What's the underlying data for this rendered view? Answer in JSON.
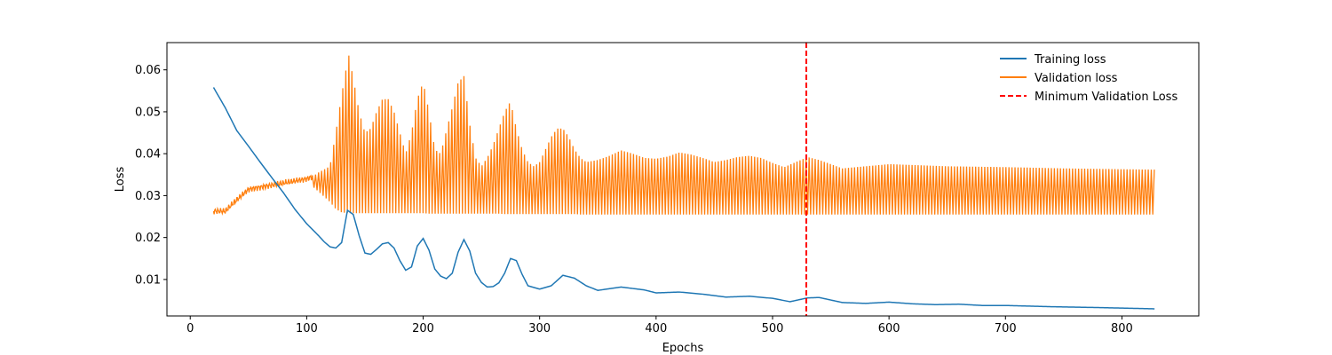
{
  "chart_data": {
    "type": "line",
    "title": "",
    "xlabel": "Epochs",
    "ylabel": "Loss",
    "xlim": [
      -20,
      866
    ],
    "ylim": [
      0.0013,
      0.0665
    ],
    "xticks": [
      0,
      100,
      200,
      300,
      400,
      500,
      600,
      700,
      800
    ],
    "yticks": [
      0.01,
      0.02,
      0.03,
      0.04,
      0.05,
      0.06
    ],
    "xtick_labels": [
      "0",
      "100",
      "200",
      "300",
      "400",
      "500",
      "600",
      "700",
      "800"
    ],
    "ytick_labels": [
      "0.01",
      "0.02",
      "0.03",
      "0.04",
      "0.05",
      "0.06"
    ],
    "grid": false,
    "legend_position": "top-right",
    "series": [
      {
        "name": "Training loss",
        "color": "#1f77b4",
        "style": "solid",
        "x": [
          20,
          30,
          40,
          50,
          60,
          70,
          80,
          90,
          100,
          110,
          115,
          120,
          125,
          130,
          135,
          140,
          145,
          150,
          155,
          160,
          165,
          170,
          175,
          180,
          185,
          190,
          195,
          200,
          205,
          210,
          215,
          220,
          225,
          230,
          235,
          240,
          245,
          250,
          255,
          260,
          265,
          270,
          275,
          280,
          285,
          290,
          300,
          310,
          320,
          330,
          340,
          350,
          370,
          390,
          400,
          420,
          440,
          460,
          480,
          500,
          515,
          530,
          540,
          560,
          580,
          600,
          620,
          640,
          660,
          680,
          700,
          740,
          780,
          828
        ],
        "y": [
          0.0558,
          0.051,
          0.0455,
          0.0418,
          0.038,
          0.0343,
          0.0307,
          0.0267,
          0.0233,
          0.0205,
          0.019,
          0.0178,
          0.0175,
          0.0188,
          0.0265,
          0.0255,
          0.0205,
          0.0163,
          0.016,
          0.0172,
          0.0185,
          0.0188,
          0.0175,
          0.0145,
          0.0122,
          0.013,
          0.018,
          0.0198,
          0.017,
          0.0125,
          0.0108,
          0.0102,
          0.0115,
          0.0165,
          0.0195,
          0.0168,
          0.0115,
          0.0093,
          0.0082,
          0.0083,
          0.0092,
          0.0115,
          0.015,
          0.0145,
          0.0112,
          0.0085,
          0.0077,
          0.0085,
          0.011,
          0.0103,
          0.0085,
          0.0074,
          0.0082,
          0.0075,
          0.0068,
          0.007,
          0.0065,
          0.0058,
          0.006,
          0.0055,
          0.0047,
          0.0056,
          0.0057,
          0.0045,
          0.0043,
          0.0046,
          0.0042,
          0.004,
          0.0041,
          0.0038,
          0.0038,
          0.0035,
          0.0033,
          0.003
        ]
      },
      {
        "name": "Validation loss",
        "color": "#ff7f0e",
        "style": "oscillating",
        "x": [
          20,
          30,
          40,
          50,
          60,
          70,
          80,
          90,
          100,
          105
        ],
        "y": [
          0.0263,
          0.0263,
          0.029,
          0.0315,
          0.032,
          0.0325,
          0.033,
          0.0335,
          0.034,
          0.0345
        ],
        "band_x": [
          105,
          110,
          120,
          125,
          130,
          136,
          140,
          145,
          150,
          155,
          160,
          165,
          170,
          175,
          180,
          185,
          190,
          195,
          200,
          205,
          210,
          215,
          220,
          225,
          230,
          235,
          240,
          245,
          250,
          255,
          260,
          265,
          270,
          275,
          280,
          285,
          290,
          295,
          300,
          305,
          310,
          315,
          320,
          325,
          330,
          335,
          340,
          350,
          360,
          370,
          380,
          390,
          400,
          410,
          420,
          430,
          440,
          450,
          460,
          470,
          480,
          490,
          500,
          510,
          520,
          530,
          540,
          560,
          580,
          600,
          650,
          700,
          750,
          800,
          828
        ],
        "band_upper": [
          0.0345,
          0.0355,
          0.037,
          0.045,
          0.054,
          0.0637,
          0.058,
          0.05,
          0.045,
          0.046,
          0.05,
          0.053,
          0.053,
          0.05,
          0.045,
          0.04,
          0.045,
          0.053,
          0.0572,
          0.05,
          0.041,
          0.04,
          0.0455,
          0.051,
          0.057,
          0.0585,
          0.047,
          0.039,
          0.037,
          0.039,
          0.042,
          0.046,
          0.05,
          0.0525,
          0.046,
          0.041,
          0.038,
          0.037,
          0.038,
          0.041,
          0.044,
          0.046,
          0.046,
          0.044,
          0.041,
          0.039,
          0.038,
          0.0385,
          0.0395,
          0.0408,
          0.04,
          0.039,
          0.0388,
          0.0393,
          0.0403,
          0.0398,
          0.039,
          0.038,
          0.0385,
          0.0392,
          0.0395,
          0.039,
          0.0378,
          0.0368,
          0.038,
          0.0392,
          0.0385,
          0.0365,
          0.037,
          0.0375,
          0.037,
          0.0368,
          0.0365,
          0.0363,
          0.0362
        ],
        "band_lower": [
          0.0322,
          0.031,
          0.0285,
          0.0268,
          0.026,
          0.0258,
          0.0258,
          0.0258,
          0.0258,
          0.0258,
          0.0258,
          0.0258,
          0.0258,
          0.0258,
          0.0258,
          0.0258,
          0.0258,
          0.0258,
          0.0258,
          0.0257,
          0.0257,
          0.0257,
          0.0257,
          0.0257,
          0.0257,
          0.0257,
          0.0257,
          0.0257,
          0.0257,
          0.0257,
          0.0257,
          0.0257,
          0.0256,
          0.0256,
          0.0256,
          0.0256,
          0.0256,
          0.0256,
          0.0256,
          0.0256,
          0.0256,
          0.0256,
          0.0256,
          0.0256,
          0.0256,
          0.0255,
          0.0255,
          0.0255,
          0.0255,
          0.0255,
          0.0255,
          0.0255,
          0.0255,
          0.0255,
          0.0255,
          0.0255,
          0.0255,
          0.0255,
          0.0255,
          0.0255,
          0.0255,
          0.0255,
          0.0255,
          0.0255,
          0.0255,
          0.0255,
          0.0255,
          0.0255,
          0.0255,
          0.0255,
          0.0255,
          0.0255,
          0.0255,
          0.0255,
          0.0255
        ]
      }
    ],
    "annotations": [
      {
        "type": "vline",
        "x": 529,
        "name": "Minimum Validation Loss",
        "color": "#ff0000",
        "style": "dashed"
      }
    ]
  }
}
